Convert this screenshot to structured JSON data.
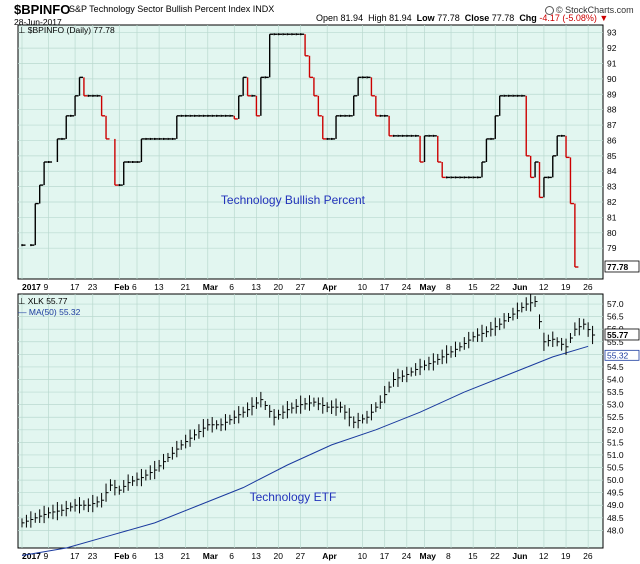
{
  "header": {
    "symbol": "$BPINFO",
    "name": "S&P Technology Sector Bullish Percent Index",
    "exchange": "INDX",
    "date": "28-Jun-2017",
    "open_label": "Open",
    "open": "81.94",
    "high_label": "High",
    "high": "81.94",
    "low_label": "Low",
    "low": "77.78",
    "close_label": "Close",
    "close": "77.78",
    "chg_label": "Chg",
    "chg": "-4.17 (-5.08%)",
    "chg_arrow": "▼",
    "logo": "© StockCharts.com"
  },
  "colors": {
    "panel_bg": "#e2f6f0",
    "grid": "#b9d9cf",
    "up": "#000000",
    "down": "#cc0000",
    "ma": "#1a3a9e",
    "annotation": "#2233bb",
    "last_box_bg": "#ffffff"
  },
  "chart_data": [
    {
      "type": "ohlc",
      "title": "$BPINFO (Daily) 77.78",
      "legend_icon": "ohlc-icon",
      "annotation": "Technology Bullish Percent",
      "ylim": [
        77,
        93.5
      ],
      "yticks": [
        "79",
        "80",
        "81",
        "82",
        "83",
        "84",
        "85",
        "86",
        "87",
        "88",
        "89",
        "90",
        "91",
        "92",
        "93"
      ],
      "last_value": "77.78",
      "x_labels": [
        "2017",
        "9",
        "17",
        "23",
        "Feb",
        "6",
        "13",
        "21",
        "Mar",
        "6",
        "13",
        "20",
        "27",
        "Apr",
        "10",
        "17",
        "24",
        "May",
        "8",
        "15",
        "22",
        "Jun",
        "12",
        "19",
        "26"
      ],
      "x_label_days": [
        0,
        6,
        12,
        16,
        22,
        26,
        31,
        37,
        42,
        48,
        53,
        58,
        63,
        69,
        77,
        82,
        87,
        91,
        97,
        102,
        107,
        112,
        118,
        123,
        128
      ],
      "x_label_bold": [
        "2017",
        "Feb",
        "Mar",
        "Apr",
        "May",
        "Jun"
      ],
      "bars": [
        [
          0,
          79.2
        ],
        [
          2,
          79.2
        ],
        [
          3,
          81.9
        ],
        [
          4,
          83.1
        ],
        [
          5,
          84.6
        ],
        [
          6,
          84.6
        ],
        [
          8,
          86.1
        ],
        [
          9,
          86.1
        ],
        [
          10,
          87.6
        ],
        [
          11,
          87.6
        ],
        [
          12,
          88.9
        ],
        [
          13,
          90.1
        ],
        [
          14,
          88.9
        ],
        [
          15,
          88.9
        ],
        [
          16,
          88.9
        ],
        [
          17,
          88.9
        ],
        [
          18,
          87.6
        ],
        [
          19,
          86.1
        ],
        [
          21,
          83.1
        ],
        [
          22,
          83.1
        ],
        [
          23,
          84.6
        ],
        [
          24,
          84.6
        ],
        [
          25,
          84.6
        ],
        [
          26,
          84.6
        ],
        [
          27,
          86.1
        ],
        [
          28,
          86.1
        ],
        [
          29,
          86.1
        ],
        [
          30,
          86.1
        ],
        [
          31,
          86.1
        ],
        [
          32,
          86.1
        ],
        [
          33,
          86.1
        ],
        [
          34,
          86.1
        ],
        [
          35,
          87.6
        ],
        [
          36,
          87.6
        ],
        [
          37,
          87.6
        ],
        [
          38,
          87.6
        ],
        [
          39,
          87.6
        ],
        [
          40,
          87.6
        ],
        [
          41,
          87.6
        ],
        [
          42,
          87.6
        ],
        [
          43,
          87.6
        ],
        [
          44,
          87.6
        ],
        [
          45,
          87.6
        ],
        [
          46,
          87.6
        ],
        [
          47,
          87.6
        ],
        [
          48,
          87.4
        ],
        [
          49,
          88.9
        ],
        [
          50,
          90.1
        ],
        [
          51,
          88.9
        ],
        [
          52,
          88.9
        ],
        [
          53,
          87.6
        ],
        [
          54,
          90.1
        ],
        [
          55,
          90.1
        ],
        [
          56,
          92.9
        ],
        [
          57,
          92.9
        ],
        [
          58,
          92.9
        ],
        [
          59,
          92.9
        ],
        [
          60,
          92.9
        ],
        [
          61,
          92.9
        ],
        [
          62,
          92.9
        ],
        [
          63,
          92.9
        ],
        [
          64,
          91.5
        ],
        [
          65,
          90.1
        ],
        [
          66,
          88.9
        ],
        [
          67,
          87.6
        ],
        [
          68,
          86.1
        ],
        [
          69,
          86.1
        ],
        [
          70,
          86.1
        ],
        [
          71,
          87.6
        ],
        [
          72,
          87.6
        ],
        [
          73,
          87.6
        ],
        [
          74,
          87.6
        ],
        [
          75,
          88.9
        ],
        [
          76,
          90.1
        ],
        [
          77,
          90.1
        ],
        [
          78,
          90.1
        ],
        [
          79,
          88.9
        ],
        [
          80,
          87.6
        ],
        [
          81,
          87.6
        ],
        [
          82,
          87.6
        ],
        [
          83,
          86.3
        ],
        [
          84,
          86.3
        ],
        [
          85,
          86.3
        ],
        [
          86,
          86.3
        ],
        [
          87,
          86.3
        ],
        [
          88,
          86.3
        ],
        [
          89,
          86.3
        ],
        [
          90,
          84.6
        ],
        [
          91,
          86.3
        ],
        [
          92,
          86.3
        ],
        [
          93,
          86.3
        ],
        [
          94,
          84.6
        ],
        [
          95,
          83.6
        ],
        [
          96,
          83.6
        ],
        [
          97,
          83.6
        ],
        [
          98,
          83.6
        ],
        [
          99,
          83.6
        ],
        [
          100,
          83.6
        ],
        [
          101,
          83.6
        ],
        [
          102,
          83.6
        ],
        [
          103,
          83.6
        ],
        [
          104,
          84.6
        ],
        [
          105,
          86.1
        ],
        [
          106,
          86.1
        ],
        [
          107,
          87.6
        ],
        [
          108,
          88.9
        ],
        [
          109,
          88.9
        ],
        [
          110,
          88.9
        ],
        [
          111,
          88.9
        ],
        [
          112,
          88.9
        ],
        [
          113,
          88.9
        ],
        [
          114,
          85.0
        ],
        [
          115,
          83.6
        ],
        [
          116,
          84.6
        ],
        [
          117,
          82.3
        ],
        [
          118,
          83.6
        ],
        [
          119,
          83.6
        ],
        [
          120,
          85.0
        ],
        [
          121,
          86.3
        ],
        [
          122,
          86.3
        ],
        [
          123,
          84.9
        ],
        [
          124,
          81.9
        ],
        [
          125,
          77.78
        ]
      ]
    },
    {
      "type": "ohlc",
      "title": "XLK 55.77",
      "ma_title": "MA(50) 55.32",
      "legend_icon": "ohlc-icon",
      "annotation": "Technology ETF",
      "ylim": [
        47.3,
        57.4
      ],
      "yticks": [
        "48.0",
        "48.5",
        "49.0",
        "49.5",
        "50.0",
        "50.5",
        "51.0",
        "51.5",
        "52.0",
        "52.5",
        "53.0",
        "53.5",
        "54.0",
        "54.5",
        "55.0",
        "55.5",
        "56.0",
        "56.5",
        "57.0"
      ],
      "last_value": "55.77",
      "ma_last_value": "55.32",
      "x_labels": [
        "2017",
        "9",
        "17",
        "23",
        "Feb",
        "6",
        "13",
        "21",
        "Mar",
        "6",
        "13",
        "20",
        "27",
        "Apr",
        "10",
        "17",
        "24",
        "May",
        "8",
        "15",
        "22",
        "Jun",
        "12",
        "19",
        "26"
      ],
      "ma": [
        [
          0,
          47.0
        ],
        [
          10,
          47.3
        ],
        [
          20,
          47.8
        ],
        [
          30,
          48.3
        ],
        [
          40,
          49.0
        ],
        [
          50,
          49.7
        ],
        [
          60,
          50.6
        ],
        [
          70,
          51.4
        ],
        [
          80,
          52.0
        ],
        [
          90,
          52.7
        ],
        [
          100,
          53.5
        ],
        [
          110,
          54.2
        ],
        [
          120,
          54.9
        ],
        [
          128,
          55.32
        ]
      ],
      "price_path": [
        [
          0,
          48.3
        ],
        [
          3,
          48.5
        ],
        [
          6,
          48.7
        ],
        [
          9,
          48.8
        ],
        [
          12,
          49.0
        ],
        [
          15,
          49.0
        ],
        [
          18,
          49.2
        ],
        [
          20,
          49.8
        ],
        [
          22,
          49.6
        ],
        [
          24,
          49.9
        ],
        [
          27,
          50.1
        ],
        [
          30,
          50.4
        ],
        [
          33,
          50.9
        ],
        [
          36,
          51.4
        ],
        [
          39,
          51.8
        ],
        [
          42,
          52.2
        ],
        [
          45,
          52.2
        ],
        [
          48,
          52.5
        ],
        [
          51,
          52.8
        ],
        [
          54,
          53.2
        ],
        [
          57,
          52.5
        ],
        [
          60,
          52.8
        ],
        [
          63,
          53.0
        ],
        [
          66,
          53.1
        ],
        [
          69,
          52.9
        ],
        [
          72,
          52.9
        ],
        [
          75,
          52.3
        ],
        [
          78,
          52.5
        ],
        [
          81,
          53.1
        ],
        [
          84,
          54.0
        ],
        [
          87,
          54.2
        ],
        [
          90,
          54.5
        ],
        [
          93,
          54.7
        ],
        [
          96,
          55.0
        ],
        [
          99,
          55.3
        ],
        [
          102,
          55.7
        ],
        [
          105,
          55.9
        ],
        [
          108,
          56.2
        ],
        [
          111,
          56.6
        ],
        [
          114,
          57.0
        ],
        [
          116,
          57.1
        ],
        [
          118,
          55.5
        ],
        [
          120,
          55.6
        ],
        [
          123,
          55.3
        ],
        [
          125,
          56.0
        ],
        [
          127,
          56.2
        ],
        [
          129,
          55.77
        ]
      ]
    }
  ]
}
